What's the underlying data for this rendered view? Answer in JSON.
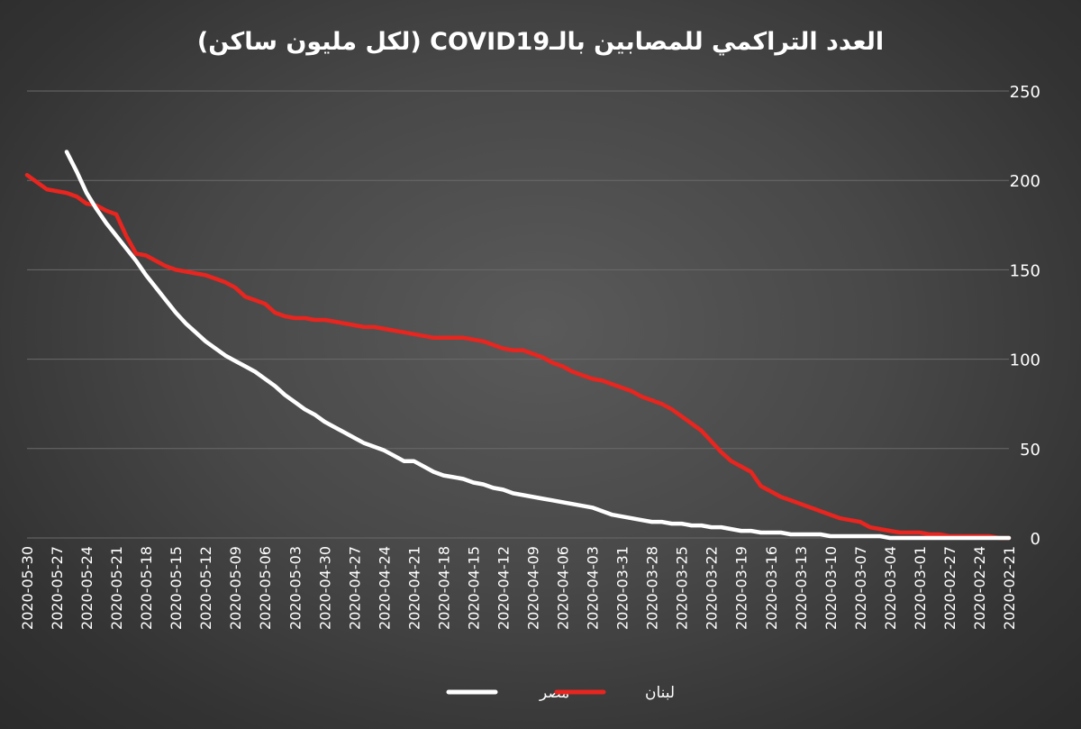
{
  "chart_data": {
    "type": "line",
    "title": "العدد التراكمي للمصابين بالـCOVID19 (لكل مليون ساكن)",
    "xlabel": "",
    "ylabel": "",
    "ylim": [
      0,
      250
    ],
    "y_ticks": [
      0,
      50,
      100,
      150,
      200,
      250
    ],
    "y_axis_side": "right",
    "x_axis_reversed": true,
    "grid": true,
    "legend_position": "bottom",
    "x": [
      "2020-05-30",
      "2020-05-29",
      "2020-05-28",
      "2020-05-27",
      "2020-05-26",
      "2020-05-25",
      "2020-05-24",
      "2020-05-23",
      "2020-05-22",
      "2020-05-21",
      "2020-05-20",
      "2020-05-19",
      "2020-05-18",
      "2020-05-17",
      "2020-05-16",
      "2020-05-15",
      "2020-05-14",
      "2020-05-13",
      "2020-05-12",
      "2020-05-11",
      "2020-05-10",
      "2020-05-09",
      "2020-05-08",
      "2020-05-07",
      "2020-05-06",
      "2020-05-05",
      "2020-05-04",
      "2020-05-03",
      "2020-05-02",
      "2020-05-01",
      "2020-04-30",
      "2020-04-29",
      "2020-04-28",
      "2020-04-27",
      "2020-04-26",
      "2020-04-25",
      "2020-04-24",
      "2020-04-23",
      "2020-04-22",
      "2020-04-21",
      "2020-04-20",
      "2020-04-19",
      "2020-04-18",
      "2020-04-17",
      "2020-04-16",
      "2020-04-15",
      "2020-04-14",
      "2020-04-13",
      "2020-04-12",
      "2020-04-11",
      "2020-04-10",
      "2020-04-09",
      "2020-04-08",
      "2020-04-07",
      "2020-04-06",
      "2020-04-05",
      "2020-04-04",
      "2020-04-03",
      "2020-04-02",
      "2020-04-01",
      "2020-03-31",
      "2020-03-30",
      "2020-03-29",
      "2020-03-28",
      "2020-03-27",
      "2020-03-26",
      "2020-03-25",
      "2020-03-24",
      "2020-03-23",
      "2020-03-22",
      "2020-03-21",
      "2020-03-20",
      "2020-03-19",
      "2020-03-18",
      "2020-03-17",
      "2020-03-16",
      "2020-03-15",
      "2020-03-14",
      "2020-03-13",
      "2020-03-12",
      "2020-03-11",
      "2020-03-10",
      "2020-03-09",
      "2020-03-08",
      "2020-03-07",
      "2020-03-06",
      "2020-03-05",
      "2020-03-04",
      "2020-03-03",
      "2020-03-02",
      "2020-03-01",
      "2020-02-29",
      "2020-02-28",
      "2020-02-27",
      "2020-02-26",
      "2020-02-25",
      "2020-02-24",
      "2020-02-23",
      "2020-02-22",
      "2020-02-21"
    ],
    "x_tick_labels": [
      "2020-05-30",
      "2020-05-27",
      "2020-05-24",
      "2020-05-21",
      "2020-05-18",
      "2020-05-15",
      "2020-05-12",
      "2020-05-09",
      "2020-05-06",
      "2020-05-03",
      "2020-04-30",
      "2020-04-27",
      "2020-04-24",
      "2020-04-21",
      "2020-04-18",
      "2020-04-15",
      "2020-04-12",
      "2020-04-09",
      "2020-04-06",
      "2020-04-03",
      "2020-03-31",
      "2020-03-28",
      "2020-03-25",
      "2020-03-22",
      "2020-03-19",
      "2020-03-16",
      "2020-03-13",
      "2020-03-10",
      "2020-03-07",
      "2020-03-04",
      "2020-03-01",
      "2020-02-27",
      "2020-02-24",
      "2020-02-21"
    ],
    "series": [
      {
        "name": "لبنان",
        "color": "#e8251f",
        "values": [
          203,
          199,
          195,
          194,
          193,
          191,
          187,
          186,
          183,
          181,
          169,
          159,
          158,
          155,
          152,
          150,
          149,
          148,
          147,
          145,
          143,
          140,
          135,
          133,
          131,
          126,
          124,
          123,
          123,
          122,
          122,
          121,
          120,
          119,
          118,
          118,
          117,
          116,
          115,
          114,
          113,
          112,
          112,
          112,
          112,
          111,
          110,
          108,
          106,
          105,
          105,
          103,
          101,
          98,
          96,
          93,
          91,
          89,
          88,
          86,
          84,
          82,
          79,
          77,
          75,
          72,
          68,
          64,
          60,
          54,
          48,
          43,
          40,
          37,
          29,
          26,
          23,
          21,
          19,
          17,
          15,
          13,
          11,
          10,
          9,
          6,
          5,
          4,
          3,
          3,
          3,
          2,
          2,
          1,
          1,
          1,
          1,
          1,
          0,
          0
        ]
      },
      {
        "name": "مصر",
        "color": "#ffffff",
        "values": [
          null,
          null,
          null,
          null,
          216,
          205,
          193,
          184,
          176,
          169,
          162,
          155,
          147,
          140,
          133,
          126,
          120,
          115,
          110,
          106,
          102,
          99,
          96,
          93,
          89,
          85,
          80,
          76,
          72,
          69,
          65,
          62,
          59,
          56,
          53,
          51,
          49,
          46,
          43,
          43,
          40,
          37,
          35,
          34,
          33,
          31,
          30,
          28,
          27,
          25,
          24,
          23,
          22,
          21,
          20,
          19,
          18,
          17,
          15,
          13,
          12,
          11,
          10,
          9,
          9,
          8,
          8,
          7,
          7,
          6,
          6,
          5,
          4,
          4,
          3,
          3,
          3,
          2,
          2,
          2,
          2,
          1,
          1,
          1,
          1,
          1,
          1,
          0,
          0,
          0,
          0,
          0,
          0,
          0,
          0,
          0,
          0,
          0,
          0,
          0
        ]
      }
    ]
  },
  "legend": {
    "items": [
      {
        "label": "مصر",
        "color": "#ffffff"
      },
      {
        "label": "لبنان",
        "color": "#e8251f"
      }
    ]
  },
  "colors": {
    "gridline": "#6a6a6a",
    "text": "#ffffff"
  }
}
